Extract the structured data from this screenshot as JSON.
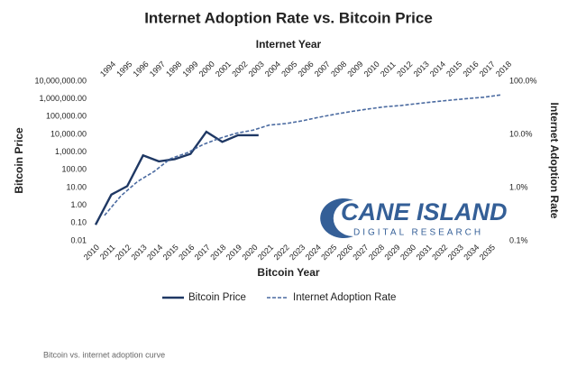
{
  "chart_data": {
    "type": "line",
    "title": "Internet Adoption Rate vs. Bitcoin Price",
    "xlabel": "Bitcoin Year",
    "x2label": "Internet Year",
    "ylabel": "Bitcoin Price",
    "y2label": "Internet Adoption Rate",
    "log_scale": true,
    "xlim": [
      2009.66,
      2035.57
    ],
    "xticks": [
      2010,
      2011,
      2012,
      2013,
      2014,
      2015,
      2016,
      2017,
      2018,
      2019,
      2020,
      2021,
      2022,
      2023,
      2024,
      2025,
      2026,
      2027,
      2028,
      2029,
      2030,
      2031,
      2032,
      2033,
      2034,
      2035
    ],
    "x2lim": [
      1993.13,
      2018
    ],
    "x2ticks": [
      1994,
      1995,
      1996,
      1997,
      1998,
      1999,
      2000,
      2001,
      2002,
      2003,
      2004,
      2005,
      2006,
      2007,
      2008,
      2009,
      2010,
      2011,
      2012,
      2013,
      2014,
      2015,
      2016,
      2017,
      2018
    ],
    "ylim": [
      0.01,
      10000000
    ],
    "yticks": [
      {
        "value": 0.01,
        "label": "0.01"
      },
      {
        "value": 0.1,
        "label": "0.10"
      },
      {
        "value": 1,
        "label": "1.00"
      },
      {
        "value": 10,
        "label": "10.00"
      },
      {
        "value": 100,
        "label": "100.00"
      },
      {
        "value": 1000,
        "label": "1,000.00"
      },
      {
        "value": 10000,
        "label": "10,000.00"
      },
      {
        "value": 100000,
        "label": "100,000.00"
      },
      {
        "value": 1000000,
        "label": "1,000,000.00"
      },
      {
        "value": 10000000,
        "label": "10,000,000.00"
      }
    ],
    "y2lim": [
      0.1,
      100
    ],
    "y2ticks": [
      {
        "value": 0.1,
        "label": "0.1%"
      },
      {
        "value": 1,
        "label": "1.0%"
      },
      {
        "value": 10,
        "label": "10.0%"
      },
      {
        "value": 100,
        "label": "100.0%"
      }
    ],
    "series": [
      {
        "name": "Bitcoin Price",
        "color": "#1f3864",
        "line_style": "solid",
        "x": [
          2010,
          2011,
          2012,
          2013,
          2014,
          2015,
          2016,
          2017,
          2018,
          2019,
          2020.3
        ],
        "values": [
          0.08,
          4,
          12,
          650,
          300,
          400,
          800,
          14000,
          3800,
          9000,
          9000
        ]
      },
      {
        "name": "Internet Adoption Rate",
        "color": "#4a6aa0",
        "line_style": "dashed",
        "axis": "y2",
        "x": [
          1994,
          1995,
          1996,
          1997,
          1998,
          1999,
          2000,
          2001,
          2002,
          2003,
          2004,
          2005,
          2006,
          2007,
          2008,
          2009,
          2010,
          2011,
          2012,
          2013,
          2014,
          2015,
          2016,
          2017,
          2018
        ],
        "values": [
          0.3,
          0.7,
          1.3,
          2,
          3.5,
          4.5,
          6.5,
          8.5,
          10.5,
          12,
          15,
          16,
          18,
          21,
          24,
          27,
          30,
          33,
          35,
          38,
          41,
          44,
          47,
          50,
          55
        ]
      }
    ],
    "watermark": {
      "name": "CANE ISLAND",
      "tagline": "DIGITAL RESEARCH"
    }
  },
  "caption": "Bitcoin vs. internet adoption curve"
}
